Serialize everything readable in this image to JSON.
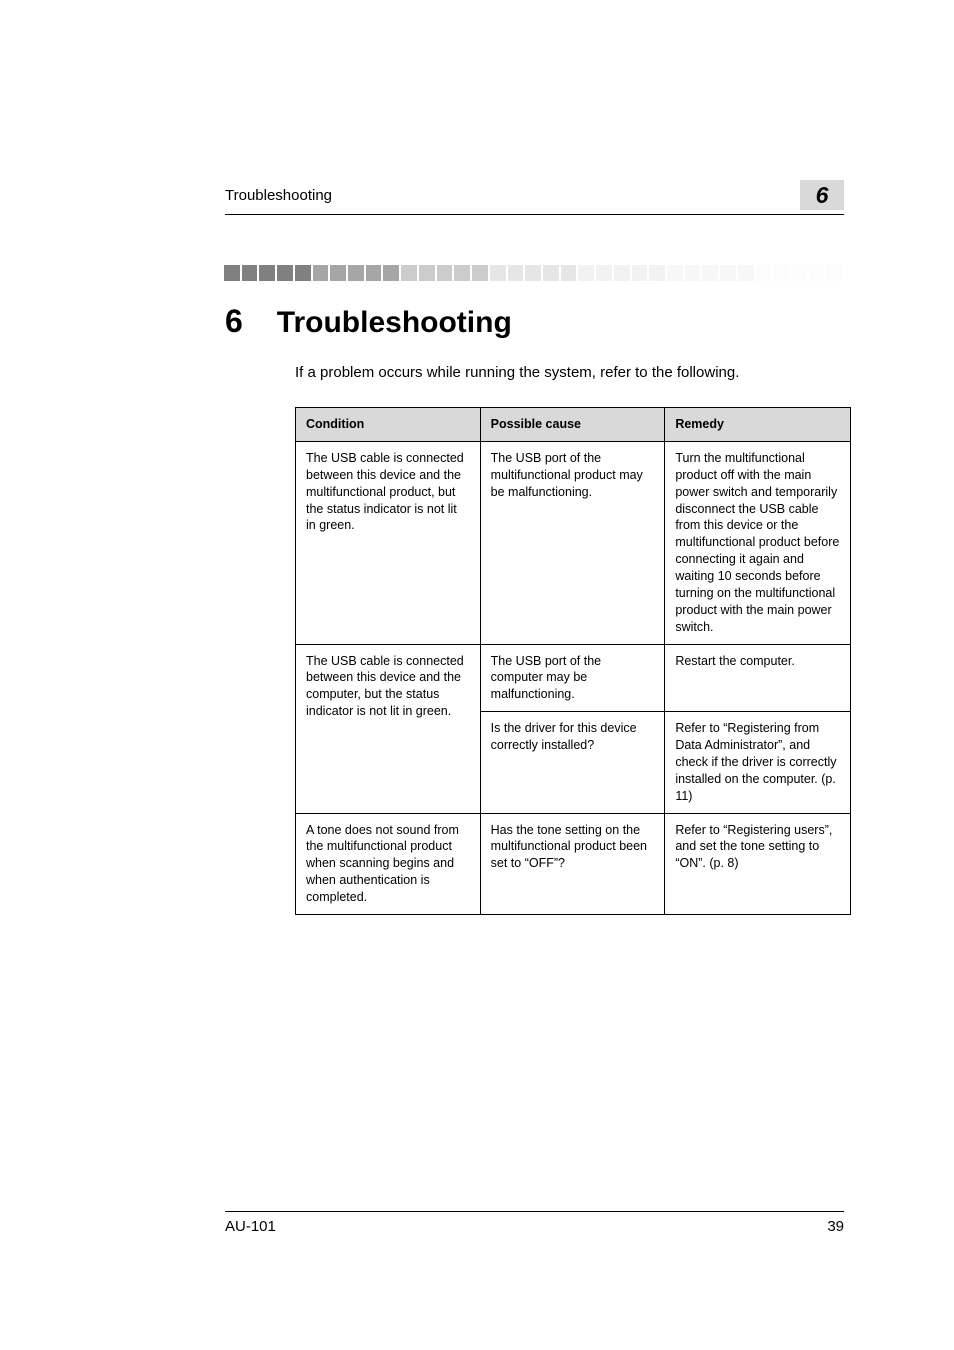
{
  "header": {
    "section_name": "Troubleshooting",
    "chapter_number": "6"
  },
  "squares": {
    "colors": [
      "#808080",
      "#808080",
      "#808080",
      "#808080",
      "#808080",
      "#a6a6a6",
      "#a6a6a6",
      "#a6a6a6",
      "#a6a6a6",
      "#a6a6a6",
      "#cccccc",
      "#cccccc",
      "#cccccc",
      "#cccccc",
      "#cccccc",
      "#e6e6e6",
      "#e6e6e6",
      "#e6e6e6",
      "#e6e6e6",
      "#e6e6e6",
      "#f2f2f2",
      "#f2f2f2",
      "#f2f2f2",
      "#f2f2f2",
      "#f2f2f2",
      "#f7f7f7",
      "#f7f7f7",
      "#f7f7f7",
      "#f7f7f7",
      "#f7f7f7",
      "#fcfcfc",
      "#fcfcfc",
      "#fcfcfc",
      "#fcfcfc",
      "#fcfcfc"
    ]
  },
  "title": {
    "number": "6",
    "text": "Troubleshooting"
  },
  "intro": "If a problem occurs while running the system, refer to the following.",
  "table": {
    "headers": {
      "condition": "Condition",
      "cause": "Possible cause",
      "remedy": "Remedy"
    },
    "rows": {
      "r1": {
        "condition": "The USB cable is connected between this device and the multifunctional product, but the status indicator is not lit in green.",
        "cause": "The USB port of the multifunctional product may be malfunctioning.",
        "remedy": "Turn the multifunctional product off with the main power switch and temporarily disconnect the USB cable from this device or the multifunctional product before connecting it again and waiting 10 seconds before turning on the multifunctional product with the main power switch."
      },
      "r2": {
        "condition": "The USB cable is connected between this device and the computer, but the status indicator is not lit in green.",
        "cause_a": "The USB port of the computer may be malfunctioning.",
        "remedy_a": "Restart the computer.",
        "cause_b": "Is the driver for this device correctly installed?",
        "remedy_b": "Refer to “Registering from Data Administrator”, and check if the driver is correctly installed on the computer. (p. 11)"
      },
      "r3": {
        "condition": "A tone does not sound from the multifunctional product when scanning begins and when authentication is completed.",
        "cause": "Has the tone setting on the multifunctional product been set to “OFF”?",
        "remedy": "Refer to “Registering users”, and set the tone setting to “ON”. (p. 8)"
      }
    }
  },
  "footer": {
    "model": "AU-101",
    "page": "39"
  }
}
